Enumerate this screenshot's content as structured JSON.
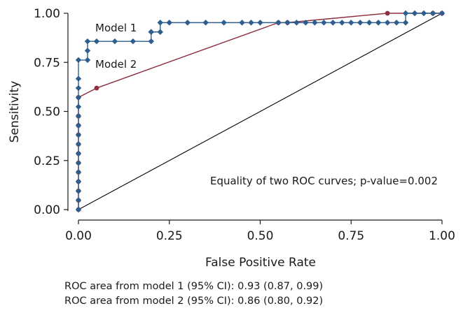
{
  "chart_data": {
    "type": "line",
    "xlabel": "False Positive Rate",
    "ylabel": "Sensitivity",
    "xlim": [
      0,
      1
    ],
    "ylim": [
      0,
      1
    ],
    "xticks": [
      "0.00",
      "0.25",
      "0.50",
      "0.75",
      "1.00"
    ],
    "yticks": [
      "0.00",
      "0.25",
      "0.50",
      "0.75",
      "1.00"
    ],
    "grid": false,
    "reference_line": {
      "x": [
        0,
        1
      ],
      "y": [
        0,
        1
      ],
      "color": "#000000"
    },
    "series": [
      {
        "name": "Model 1",
        "color": "#2e5e8e",
        "marker": "diamond",
        "x": [
          0,
          0,
          0,
          0,
          0,
          0,
          0,
          0,
          0,
          0,
          0,
          0,
          0,
          0,
          0,
          0,
          0.025,
          0.025,
          0.025,
          0.05,
          0.1,
          0.15,
          0.2,
          0.2,
          0.2,
          0.225,
          0.225,
          0.25,
          0.3,
          0.35,
          0.4,
          0.45,
          0.475,
          0.5,
          0.55,
          0.575,
          0.6,
          0.625,
          0.65,
          0.675,
          0.7,
          0.725,
          0.75,
          0.775,
          0.8,
          0.825,
          0.85,
          0.875,
          0.9,
          0.9,
          0.925,
          0.95,
          0.975,
          1
        ],
        "y": [
          0,
          0.0476,
          0.0952,
          0.1429,
          0.1905,
          0.2381,
          0.2857,
          0.3333,
          0.381,
          0.4286,
          0.4762,
          0.5238,
          0.5714,
          0.619,
          0.6667,
          0.7619,
          0.7619,
          0.8095,
          0.8571,
          0.8571,
          0.8571,
          0.8571,
          0.8571,
          0.9048,
          0.9048,
          0.9048,
          0.9524,
          0.9524,
          0.9524,
          0.9524,
          0.9524,
          0.9524,
          0.9524,
          0.9524,
          0.9524,
          0.9524,
          0.9524,
          0.9524,
          0.9524,
          0.9524,
          0.9524,
          0.9524,
          0.9524,
          0.9524,
          0.9524,
          0.9524,
          0.9524,
          0.9524,
          0.9524,
          1,
          1,
          1,
          1,
          1
        ]
      },
      {
        "name": "Model 2",
        "color": "#8b2e3e",
        "marker": "circle",
        "x": [
          0,
          0,
          0,
          0,
          0,
          0,
          0,
          0,
          0,
          0,
          0,
          0,
          0.05,
          0.55,
          0.575,
          0.85,
          0.975,
          1
        ],
        "y": [
          0,
          0.0476,
          0.0952,
          0.1429,
          0.1905,
          0.2381,
          0.2857,
          0.3333,
          0.381,
          0.4286,
          0.4762,
          0.5714,
          0.619,
          0.9524,
          0.9524,
          1,
          1,
          1
        ]
      }
    ],
    "annotations": [
      "Model 1",
      "Model 2",
      "Equality of two ROC curves; p-value=0.002"
    ]
  },
  "footnotes": [
    "ROC area from model 1 (95% CI): 0.93 (0.87, 0.99)",
    "ROC area from model 2 (95% CI): 0.86 (0.80, 0.92)"
  ]
}
